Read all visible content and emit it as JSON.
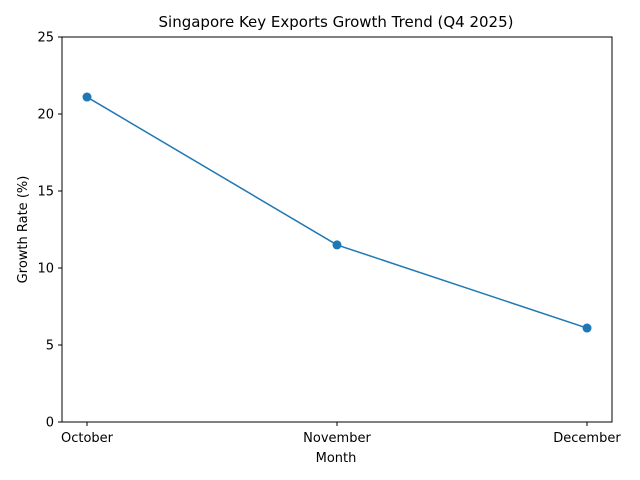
{
  "chart_data": {
    "type": "line",
    "title": "Singapore Key Exports Growth Trend (Q4 2025)",
    "xlabel": "Month",
    "ylabel": "Growth Rate (%)",
    "categories": [
      "October",
      "November",
      "December"
    ],
    "series": [
      {
        "name": "Growth Rate",
        "values": [
          21.1,
          11.5,
          6.1
        ],
        "color": "#1f77b4",
        "marker": "circle"
      }
    ],
    "ylim": [
      0,
      25
    ],
    "yticks": [
      0,
      5,
      10,
      15,
      20,
      25
    ],
    "grid": false,
    "legend": "none"
  }
}
